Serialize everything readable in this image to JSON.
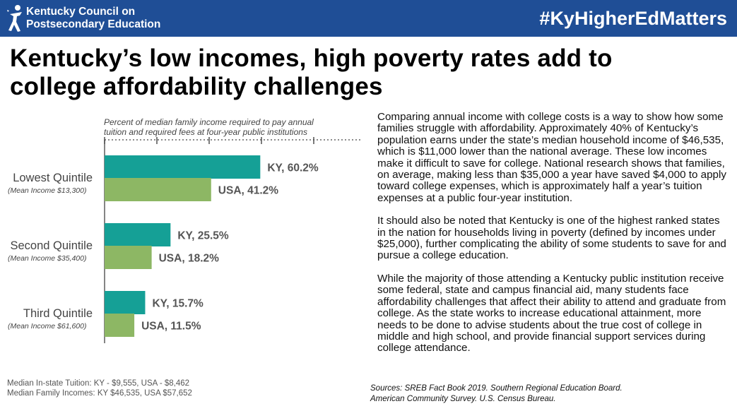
{
  "header": {
    "org_line1": "Kentucky Council on",
    "org_line2": "Postsecondary Education",
    "hashtag": "#KyHigherEdMatters",
    "logo_icon": "person-figure-icon",
    "background_color": "#1f4e96"
  },
  "headline": {
    "line1": "Kentucky’s low incomes, high poverty rates add to",
    "line2": "college affordability challenges"
  },
  "chart_caption": {
    "line1": "Percent of median family income required to pay annual",
    "line2": "tuition and required fees at four-year public institutions"
  },
  "chart_data": {
    "type": "bar",
    "orientation": "horizontal",
    "title": "Percent of median family income required to pay annual tuition and required fees at four-year public institutions",
    "categories": [
      "Lowest Quintile",
      "Second Quintile",
      "Third Quintile"
    ],
    "category_notes": [
      "(Mean Income $13,300)",
      "(Mean Income $35,400)",
      "(Mean Income $61,600)"
    ],
    "series": [
      {
        "name": "KY",
        "values": [
          60.2,
          25.5,
          15.7
        ],
        "labels": [
          "KY, 60.2%",
          "KY, 25.5%",
          "KY, 15.7%"
        ],
        "color": "#15a096"
      },
      {
        "name": "USA",
        "values": [
          41.2,
          18.2,
          11.5
        ],
        "labels": [
          "USA, 41.2%",
          "USA, 18.2%",
          "USA, 11.5%"
        ],
        "color": "#8db764"
      }
    ],
    "xlim": [
      0,
      100
    ],
    "grid": false
  },
  "footnote": {
    "line1": "Median In-state Tuition: KY - $9,555, USA - $8,462",
    "line2": "Median Family Incomes: KY $46,535, USA $57,652"
  },
  "body": {
    "p1": "Comparing annual income with college costs is a way to show how some families struggle with affordability. Approximately 40% of Kentucky’s population earns under the state’s median household income of $46,535, which is $11,000 lower than the national average. These low incomes make it difficult to save for college. National research shows that families, on average, making less than $35,000 a year have saved $4,000 to apply toward college expenses, which is approximately half a year’s tuition expenses at a public four-year institution.",
    "p2": "It should also be noted that Kentucky is one of the highest ranked states in the nation for households living in poverty (defined by incomes under $25,000), further complicating the ability of some students to save for and pursue a college education.",
    "p3": "While the majority of those attending a Kentucky public institution receive some federal, state and campus financial aid, many students face affordability challenges that affect their ability to attend and graduate from college. As the state works to increase educational attainment, more needs to be done to advise students about the true cost of college in middle and high school, and provide financial support services during college attendance."
  },
  "sources": {
    "line1": "Sources: SREB Fact Book 2019. Southern Regional Education Board.",
    "line2": "American Community Survey. U.S. Census Bureau."
  }
}
